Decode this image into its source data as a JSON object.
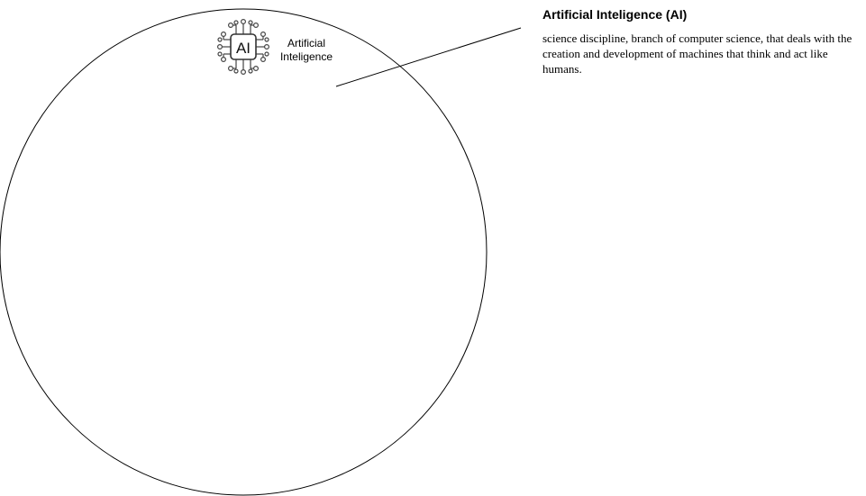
{
  "diagram": {
    "circle_label": "Artificial Inteligence",
    "chip_icon_text": "AI",
    "icon": "ai-chip-icon",
    "callout": {
      "title": "Artificial Inteligence (AI)",
      "body": "science discipline, branch of computer science, that deals with the creation and development of machines that think and act like humans."
    },
    "colors": {
      "stroke": "#000000",
      "background": "#ffffff"
    }
  }
}
